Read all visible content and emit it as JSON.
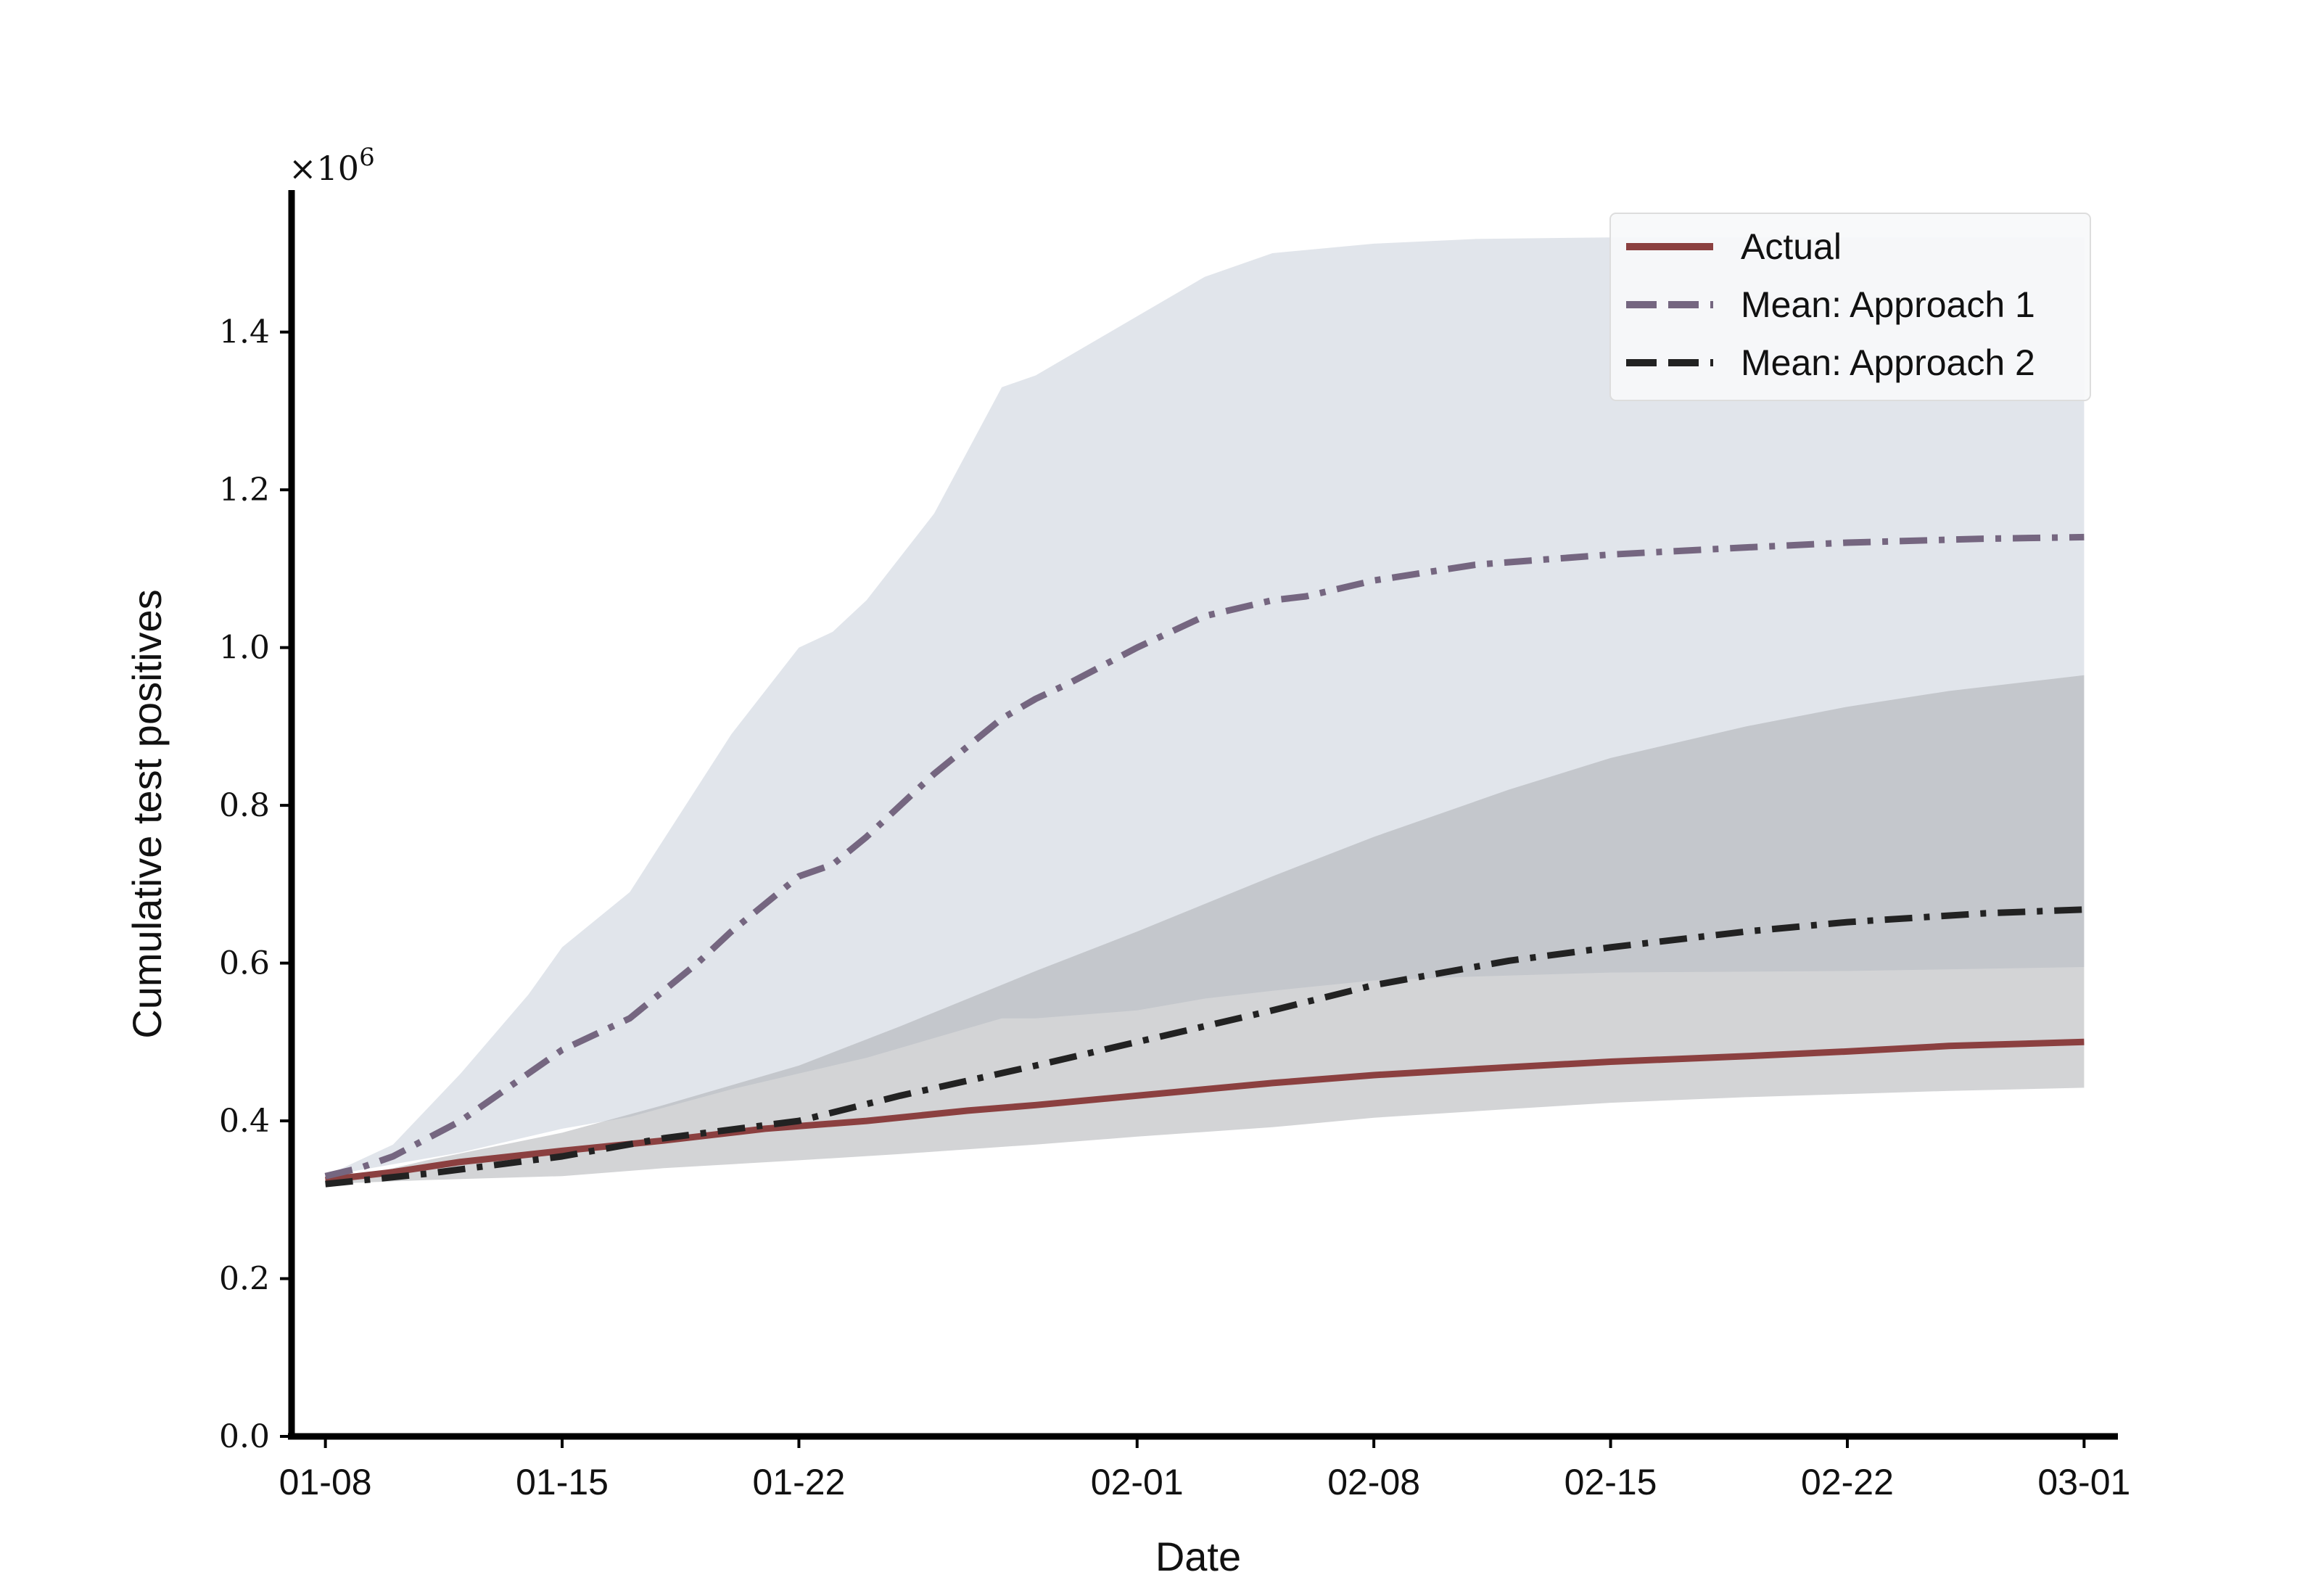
{
  "chart_data": {
    "type": "line",
    "title": "",
    "xlabel": "Date",
    "ylabel": "Cumulative test positives",
    "y_offset_label": "×10",
    "y_offset_exp": "6",
    "y_scale": 1000000,
    "xlim": [
      "01-07",
      "03-02"
    ],
    "ylim": [
      0,
      1.58
    ],
    "x_ticks": [
      "01-08",
      "01-15",
      "01-22",
      "02-01",
      "02-08",
      "02-15",
      "02-22",
      "03-01"
    ],
    "y_ticks": [
      "0.0",
      "0.2",
      "0.4",
      "0.6",
      "0.8",
      "1.0",
      "1.2",
      "1.4"
    ],
    "grid": false,
    "legend_position": "top-right",
    "bands": [
      {
        "color": "#e1e5eb",
        "x": [
          "01-08",
          "01-10",
          "01-12",
          "01-14",
          "01-15",
          "01-17",
          "01-20",
          "01-22",
          "01-23",
          "01-24",
          "01-26",
          "01-28",
          "01-29",
          "02-01",
          "02-03",
          "02-05",
          "02-08",
          "02-11",
          "02-15",
          "02-22",
          "02-29"
        ],
        "upper": [
          0.33,
          0.37,
          0.46,
          0.56,
          0.62,
          0.69,
          0.89,
          1.0,
          1.02,
          1.06,
          1.17,
          1.33,
          1.345,
          1.42,
          1.47,
          1.5,
          1.512,
          1.518,
          1.52,
          1.52,
          1.52
        ],
        "lower": [
          0.33,
          0.345,
          0.36,
          0.38,
          0.39,
          0.405,
          0.44,
          0.46,
          0.47,
          0.48,
          0.505,
          0.53,
          0.53,
          0.54,
          0.555,
          0.565,
          0.578,
          0.583,
          0.588,
          0.59,
          0.595
        ]
      },
      {
        "color": "#a7aaad",
        "opacity": 0.5,
        "x": [
          "01-08",
          "01-11",
          "01-15",
          "01-18",
          "01-22",
          "01-25",
          "01-29",
          "02-01",
          "02-05",
          "02-08",
          "02-12",
          "02-15",
          "02-19",
          "02-22",
          "02-25",
          "02-29"
        ],
        "upper": [
          0.32,
          0.35,
          0.385,
          0.42,
          0.47,
          0.52,
          0.59,
          0.64,
          0.71,
          0.76,
          0.82,
          0.86,
          0.9,
          0.925,
          0.945,
          0.965
        ],
        "lower": [
          0.32,
          0.325,
          0.33,
          0.34,
          0.35,
          0.358,
          0.37,
          0.38,
          0.392,
          0.404,
          0.415,
          0.423,
          0.43,
          0.434,
          0.438,
          0.442
        ]
      }
    ],
    "series": [
      {
        "name": "Actual",
        "color": "#8b4040",
        "dash": "solid",
        "x": [
          "01-08",
          "01-10",
          "01-12",
          "01-15",
          "01-18",
          "01-21",
          "01-24",
          "01-27",
          "01-29",
          "02-01",
          "02-05",
          "02-08",
          "02-12",
          "02-15",
          "02-19",
          "02-22",
          "02-25",
          "02-29"
        ],
        "values": [
          0.325,
          0.335,
          0.348,
          0.362,
          0.375,
          0.39,
          0.4,
          0.413,
          0.42,
          0.432,
          0.448,
          0.458,
          0.468,
          0.475,
          0.482,
          0.488,
          0.495,
          0.5
        ]
      },
      {
        "name": "Mean: Approach 1",
        "color": "#756680",
        "dash": "dashdot",
        "x": [
          "01-08",
          "01-09",
          "01-10",
          "01-12",
          "01-15",
          "01-17",
          "01-19",
          "01-20",
          "01-22",
          "01-23",
          "01-24",
          "01-26",
          "01-28",
          "01-29",
          "01-30",
          "02-01",
          "02-03",
          "02-05",
          "02-06",
          "02-08",
          "02-11",
          "02-15",
          "02-19",
          "02-22",
          "02-26",
          "02-29"
        ],
        "values": [
          0.33,
          0.34,
          0.355,
          0.4,
          0.49,
          0.53,
          0.6,
          0.64,
          0.71,
          0.725,
          0.76,
          0.84,
          0.91,
          0.935,
          0.955,
          1.0,
          1.04,
          1.06,
          1.065,
          1.085,
          1.105,
          1.118,
          1.127,
          1.133,
          1.138,
          1.14
        ]
      },
      {
        "name": "Mean: Approach 2",
        "color": "#222222",
        "dash": "dashdot",
        "x": [
          "01-08",
          "01-11",
          "01-15",
          "01-18",
          "01-22",
          "01-25",
          "01-29",
          "02-01",
          "02-05",
          "02-08",
          "02-12",
          "02-15",
          "02-19",
          "02-22",
          "02-26",
          "02-29"
        ],
        "values": [
          0.32,
          0.333,
          0.355,
          0.378,
          0.4,
          0.432,
          0.47,
          0.5,
          0.54,
          0.572,
          0.603,
          0.62,
          0.64,
          0.652,
          0.663,
          0.668
        ]
      }
    ]
  }
}
